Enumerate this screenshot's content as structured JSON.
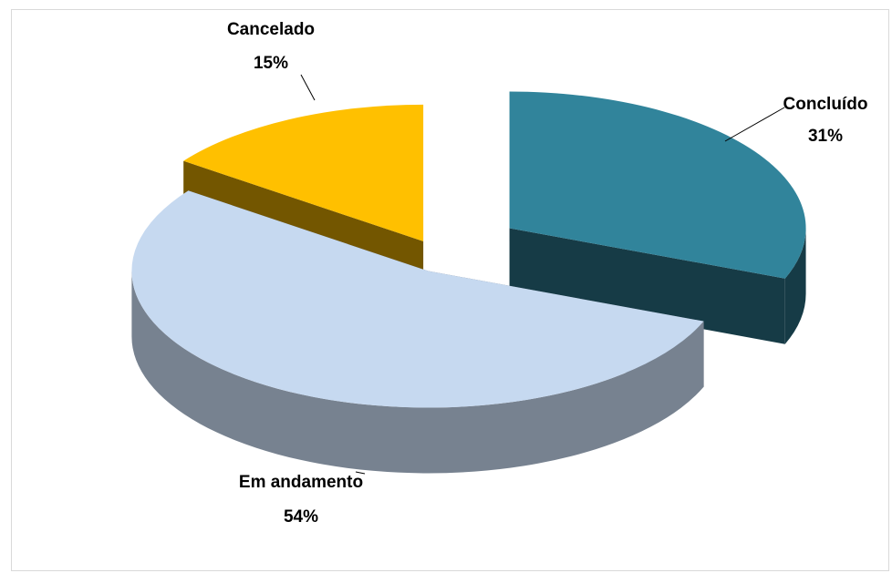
{
  "chart_data": {
    "type": "pie",
    "categories": [
      "Concluído",
      "Em andamento",
      "Cancelado"
    ],
    "values": [
      31,
      54,
      15
    ],
    "value_labels": [
      "31%",
      "54%",
      "15%"
    ],
    "colors": [
      "#31849b",
      "#c6d9f0",
      "#ffc000"
    ]
  }
}
